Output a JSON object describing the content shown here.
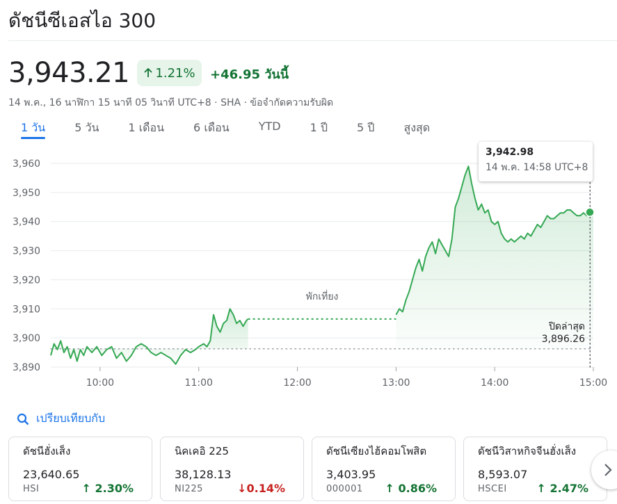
{
  "header": {
    "title": "ดัชนีซีเอสไอ 300"
  },
  "quote": {
    "price": "3,943.21",
    "change_pct": "1.21%",
    "change_abs": "+46.95",
    "change_period": "วันนี้",
    "meta": "14 พ.ค., 16 นาฬิกา 15 นาที 05 วินาที UTC+8 · SHA · ข้อจำกัดความรับผิด"
  },
  "tabs": [
    {
      "label": "1 วัน",
      "active": true
    },
    {
      "label": "5 วัน"
    },
    {
      "label": "1 เดือน"
    },
    {
      "label": "6 เดือน"
    },
    {
      "label": "YTD"
    },
    {
      "label": "1 ปี"
    },
    {
      "label": "5 ปี"
    },
    {
      "label": "สูงสุด"
    }
  ],
  "tooltip": {
    "value": "3,942.98",
    "time": "14 พ.ค. 14:58 UTC+8"
  },
  "chart_data": {
    "type": "area",
    "title": "",
    "xlabel": "",
    "ylabel": "",
    "xlim": [
      "09:30",
      "15:00"
    ],
    "ylim": [
      3890,
      3960
    ],
    "y_ticks": [
      "3,960",
      "3,950",
      "3,940",
      "3,930",
      "3,920",
      "3,910",
      "3,900",
      "3,890"
    ],
    "y_tick_values": [
      3960,
      3950,
      3940,
      3930,
      3920,
      3910,
      3900,
      3890
    ],
    "x_ticks": [
      "10:00",
      "11:00",
      "12:00",
      "13:00",
      "14:00",
      "15:00"
    ],
    "grid": true,
    "color": "#34a853",
    "lunch_break": {
      "label": "พักเที่ยง",
      "from": "11:30",
      "to": "13:00",
      "value": 3906.5
    },
    "previous_close": {
      "label": "ปิดล่าสุด",
      "value_text": "3,896.26",
      "value": 3896.26
    },
    "hover_point": {
      "x": "14:58",
      "y": 3942.98
    },
    "last_point": {
      "x": "15:00",
      "y": 3943.21
    },
    "series": [
      {
        "x": [
          "09:30",
          "09:32",
          "09:34",
          "09:36",
          "09:38",
          "09:40",
          "09:42",
          "09:44",
          "09:46",
          "09:48",
          "09:50",
          "09:52",
          "09:55",
          "09:58",
          "10:01",
          "10:04",
          "10:07",
          "10:10",
          "10:13",
          "10:16",
          "10:19",
          "10:22",
          "10:25",
          "10:28",
          "10:31",
          "10:34",
          "10:37",
          "10:40",
          "10:43",
          "10:46",
          "10:49",
          "10:52",
          "10:55",
          "10:58",
          "11:00",
          "11:03",
          "11:05",
          "11:07",
          "11:09",
          "11:11",
          "11:13",
          "11:15",
          "11:17",
          "11:19",
          "11:21",
          "11:23",
          "11:25",
          "11:27",
          "11:29",
          "11:30"
        ],
        "y": [
          3894,
          3898,
          3896,
          3899,
          3895,
          3897,
          3893,
          3896,
          3892,
          3896,
          3894,
          3897,
          3895,
          3897,
          3894,
          3896,
          3897,
          3893,
          3895,
          3892,
          3894,
          3897,
          3898,
          3897,
          3895,
          3894,
          3895,
          3894,
          3893,
          3891,
          3894,
          3896,
          3895,
          3896,
          3897,
          3898,
          3897,
          3899,
          3908,
          3904,
          3902,
          3905,
          3906,
          3910,
          3908,
          3905,
          3906,
          3904,
          3906,
          3906.5
        ]
      },
      {
        "x": [
          "13:00",
          "13:02",
          "13:04",
          "13:06",
          "13:08",
          "13:10",
          "13:12",
          "13:14",
          "13:16",
          "13:18",
          "13:20",
          "13:22",
          "13:24",
          "13:26",
          "13:28",
          "13:30",
          "13:32",
          "13:34",
          "13:36",
          "13:38",
          "13:40",
          "13:42",
          "13:44",
          "13:46",
          "13:48",
          "13:50",
          "13:52",
          "13:54",
          "13:56",
          "13:58",
          "14:00",
          "14:02",
          "14:04",
          "14:06",
          "14:08",
          "14:10",
          "14:12",
          "14:14",
          "14:16",
          "14:18",
          "14:20",
          "14:22",
          "14:24",
          "14:26",
          "14:28",
          "14:30",
          "14:32",
          "14:34",
          "14:36",
          "14:38",
          "14:40",
          "14:42",
          "14:44",
          "14:46",
          "14:48",
          "14:50",
          "14:52",
          "14:54",
          "14:56",
          "14:58",
          "15:00"
        ],
        "y": [
          3908,
          3910,
          3909,
          3913,
          3916,
          3920,
          3924,
          3927,
          3923,
          3928,
          3931,
          3933,
          3929,
          3934,
          3932,
          3930,
          3928,
          3934,
          3945,
          3948,
          3952,
          3956,
          3959,
          3953,
          3948,
          3944,
          3946,
          3943,
          3944,
          3940,
          3939,
          3940,
          3936,
          3934,
          3933,
          3934,
          3933,
          3934,
          3935,
          3934,
          3936,
          3935,
          3937,
          3939,
          3938,
          3940,
          3942,
          3941,
          3941,
          3942,
          3943,
          3943,
          3944,
          3944,
          3943,
          3942,
          3942,
          3943,
          3942,
          3942.98,
          3943.21
        ]
      }
    ]
  },
  "compare": {
    "label": "เปรียบเทียบกับ"
  },
  "cards": [
    {
      "name": "ดัชนีฮั่งเส็ง",
      "price": "23,640.65",
      "code": "HSI",
      "change": "2.30%",
      "direction": "up"
    },
    {
      "name": "นิคเคอิ 225",
      "price": "38,128.13",
      "code": "NI225",
      "change": "0.14%",
      "direction": "down"
    },
    {
      "name": "ดัชนีเซียงไฮ้คอมโพสิต",
      "price": "3,403.95",
      "code": "000001",
      "change": "0.86%",
      "direction": "up"
    },
    {
      "name": "ดัชนีวิสาหกิจจีนฮั่งเส็ง",
      "price": "8,593.07",
      "code": "HSCEI",
      "change": "2.47%",
      "direction": "up"
    }
  ]
}
